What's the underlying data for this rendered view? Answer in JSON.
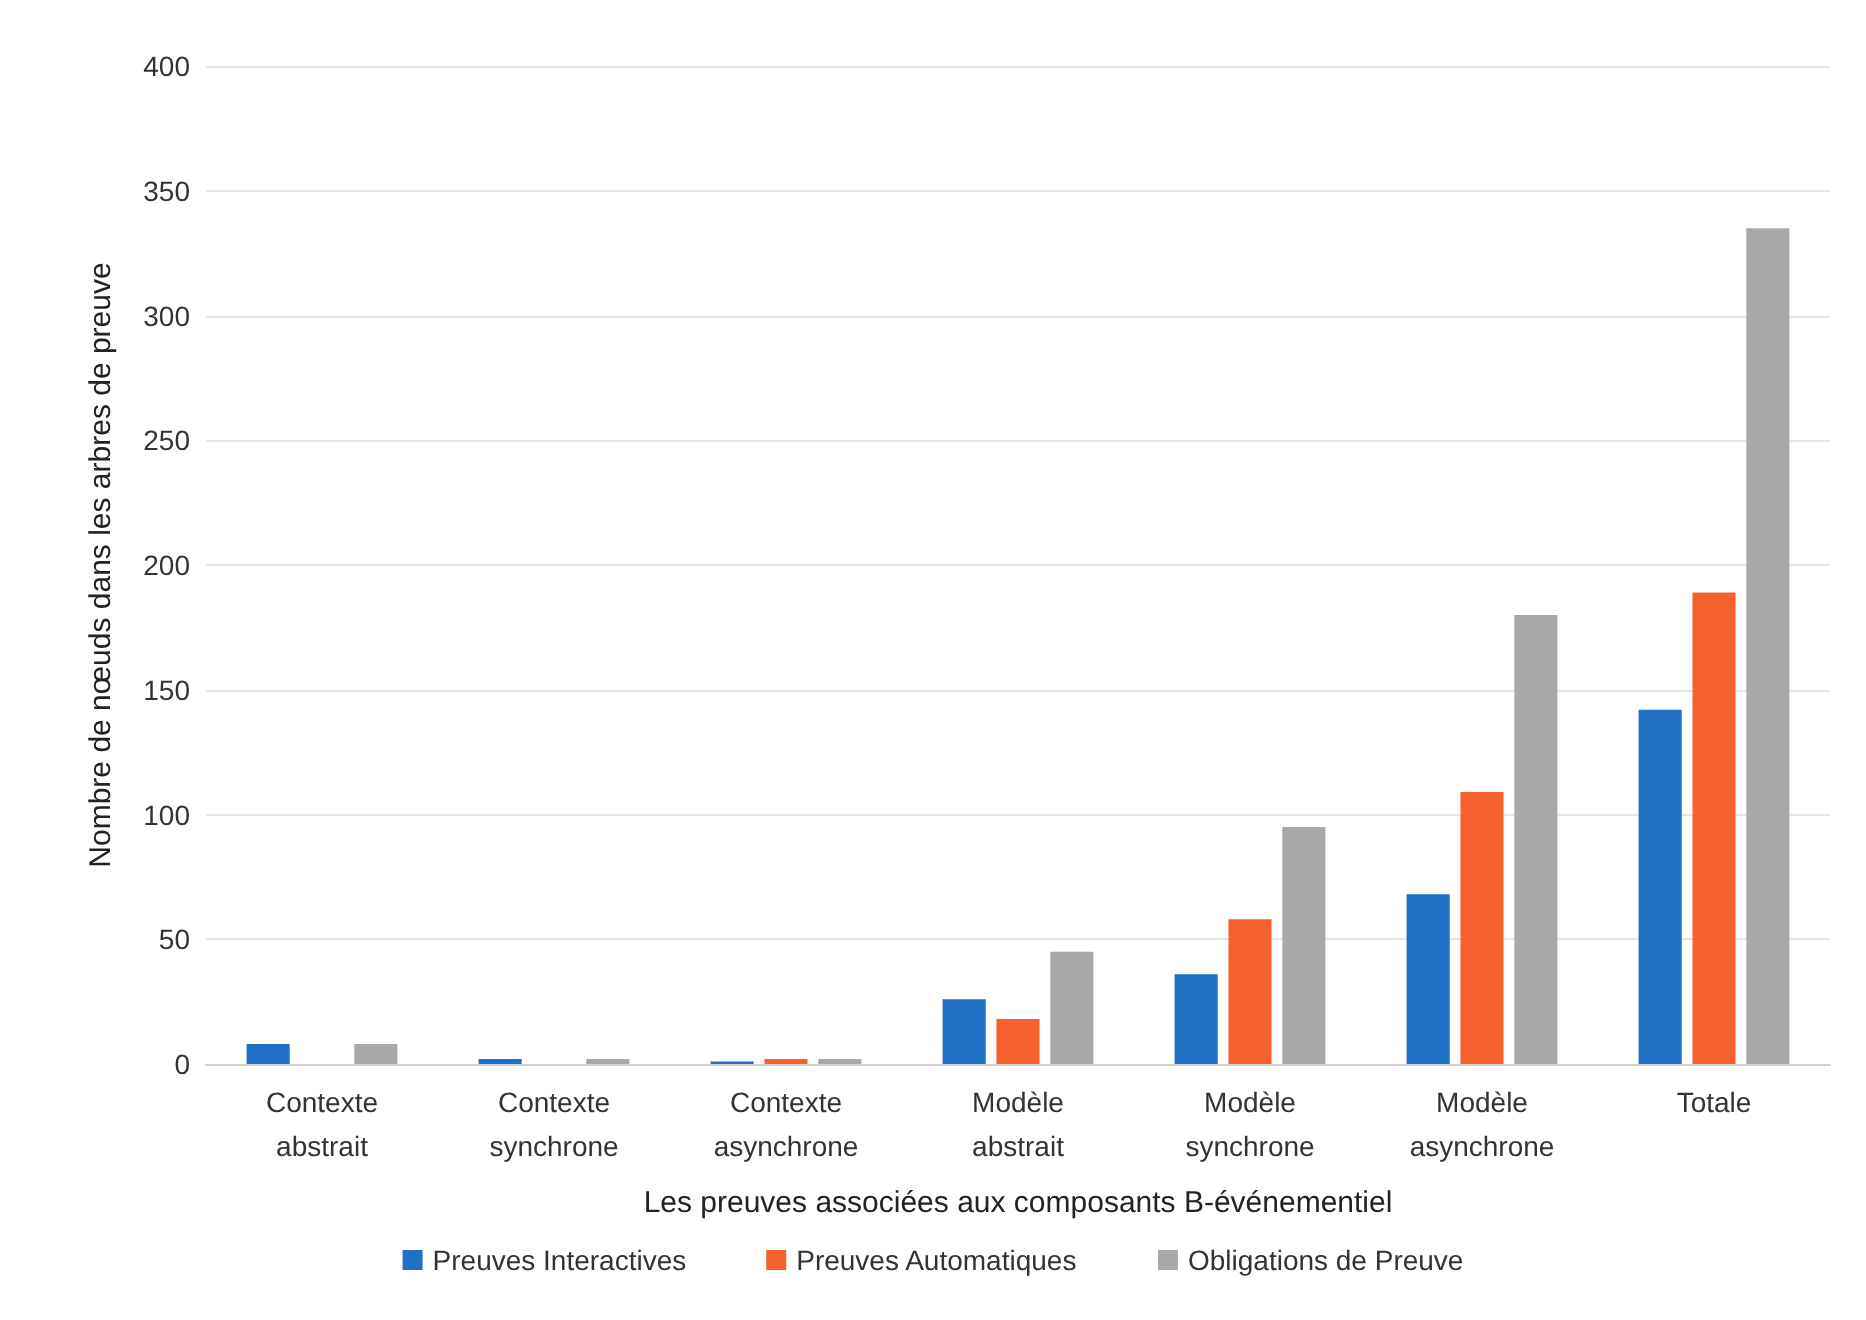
{
  "chart_data": {
    "type": "bar",
    "xlabel": "Les preuves associées aux composants B-événementiel",
    "ylabel": "Nombre de nœuds dans les arbres de preuve",
    "categories": [
      "Contexte\nabstrait",
      "Contexte\nsynchrone",
      "Contexte\nasynchrone",
      "Modèle\nabstrait",
      "Modèle\nsynchrone",
      "Modèle\nasynchrone",
      "Totale"
    ],
    "series": [
      {
        "name": "Preuves Interactives",
        "color": "#1f6fc5",
        "values": [
          8,
          2,
          1,
          26,
          36,
          68,
          142
        ]
      },
      {
        "name": "Preuves Automatiques",
        "color": "#f5622e",
        "values": [
          0,
          0,
          2,
          18,
          58,
          109,
          189
        ]
      },
      {
        "name": "Obligations de Preuve",
        "color": "#a9a9a9",
        "values": [
          8,
          2,
          2,
          45,
          95,
          180,
          335
        ]
      }
    ],
    "ylim": [
      0,
      400
    ],
    "yticks": [
      0,
      50,
      100,
      150,
      200,
      250,
      300,
      350,
      400
    ],
    "grid": "y",
    "legend": "bottom"
  }
}
